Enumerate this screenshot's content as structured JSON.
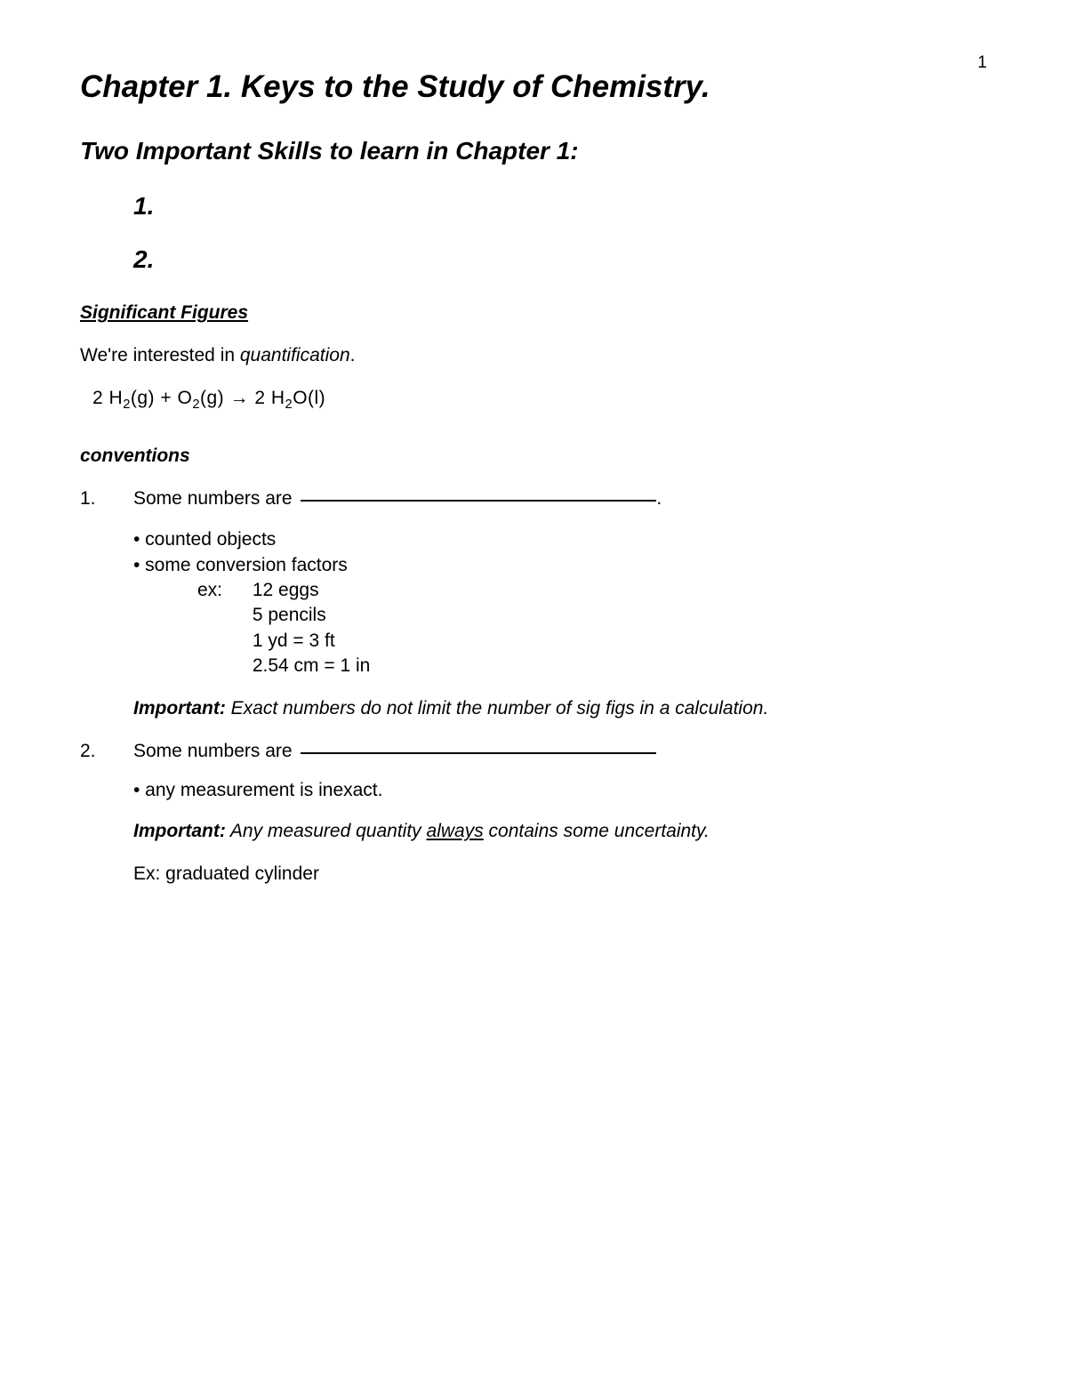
{
  "page_number": "1",
  "chapter_title": "Chapter 1.  Keys to the Study of Chemistry.",
  "subtitle": "Two Important Skills to learn in Chapter 1:",
  "skills": {
    "one": "1.",
    "two": "2."
  },
  "section_heading": "Significant Figures",
  "intro_prefix": "We're interested in ",
  "intro_ital": "quantification",
  "intro_suffix": ".",
  "equation": {
    "lhs1_coef": "2 H",
    "lhs1_sub": "2",
    "lhs1_state": "(g)",
    "plus": "   +   ",
    "lhs2": "O",
    "lhs2_sub": "2",
    "lhs2_state": "(g)",
    "arrow": " → ",
    "rhs_coef": " 2 H",
    "rhs_sub": "2",
    "rhs_tail": "O(l)"
  },
  "conventions_heading": "conventions",
  "item1": {
    "num": "1.",
    "text": "Some numbers are ",
    "period": ".",
    "bullets": [
      "• counted objects",
      "• some conversion factors"
    ],
    "ex_label": "ex:",
    "examples": [
      "12 eggs",
      "5 pencils",
      "1 yd = 3 ft",
      "2.54 cm = 1 in"
    ],
    "important_lead": "Important:",
    "important_text": "  Exact numbers do not limit the number of sig figs in a calculation."
  },
  "item2": {
    "num": "2.",
    "text": "Some numbers are ",
    "bullet": "• any measurement is inexact.",
    "important_lead": "Important:",
    "important_pre": "  Any measured quantity ",
    "important_underline": "always",
    "important_post": " contains some uncertainty.",
    "ex": "Ex:  graduated cylinder"
  },
  "colors": {
    "text": "#000000",
    "background": "#ffffff"
  }
}
